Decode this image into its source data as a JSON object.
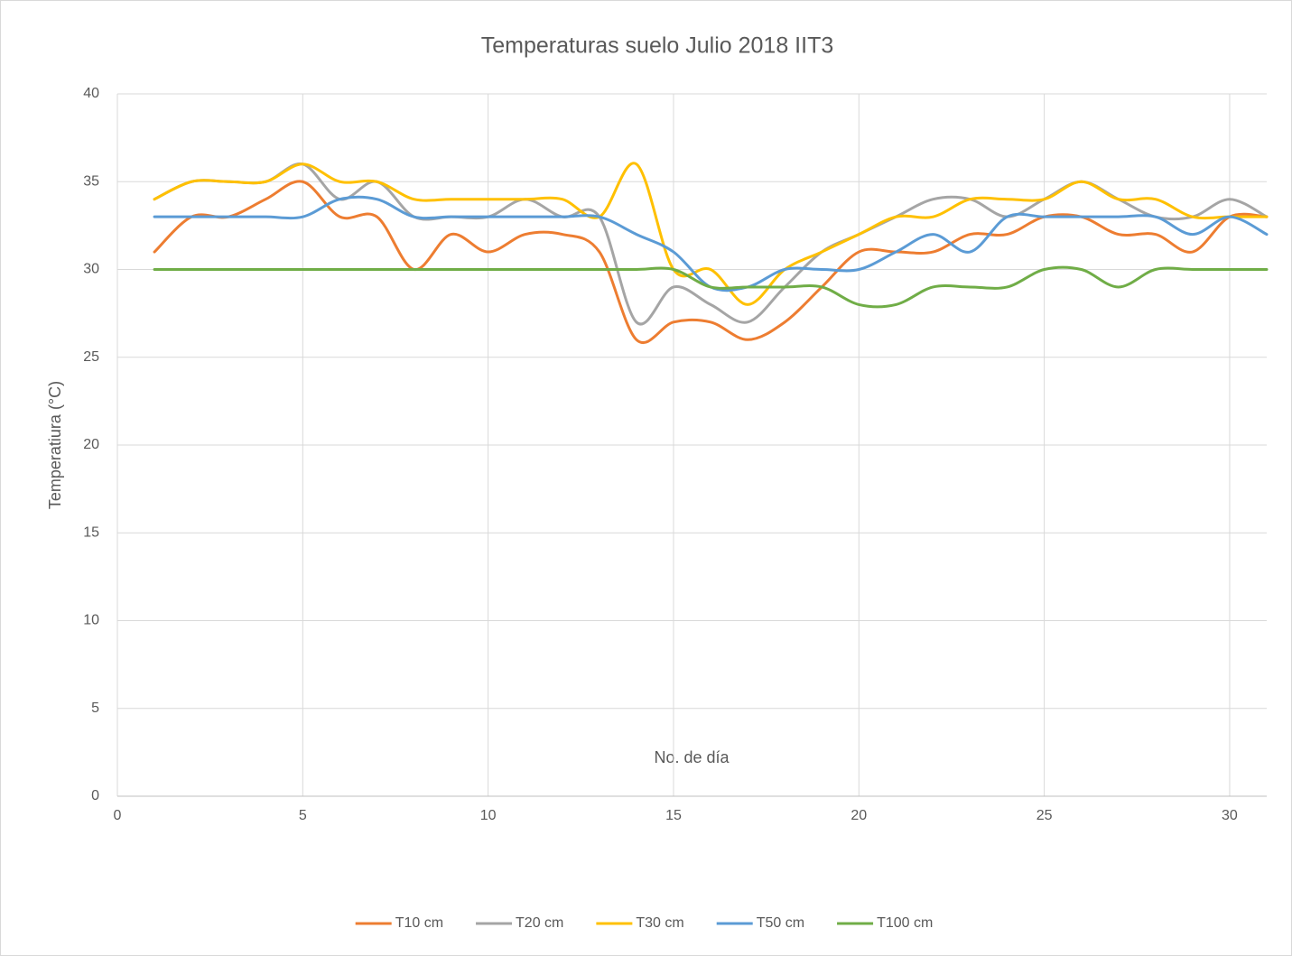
{
  "chart_data": {
    "type": "line",
    "title": "Temperaturas suelo Julio 2018 IIT3",
    "x_label": "No. de día",
    "y_label": "Temperatiura (°C)",
    "x": [
      1,
      2,
      3,
      4,
      5,
      6,
      7,
      8,
      9,
      10,
      11,
      12,
      13,
      14,
      15,
      16,
      17,
      18,
      19,
      20,
      21,
      22,
      23,
      24,
      25,
      26,
      27,
      28,
      29,
      30,
      31
    ],
    "series": [
      {
        "name": "T10 cm",
        "color": "#ed7d31",
        "values": [
          31,
          33,
          33,
          34,
          35,
          33,
          33,
          30,
          32,
          31,
          32,
          32,
          31,
          26,
          27,
          27,
          26,
          27,
          29,
          31,
          31,
          31,
          32,
          32,
          33,
          33,
          32,
          32,
          31,
          33,
          33
        ]
      },
      {
        "name": "T20 cm",
        "color": "#a5a5a5",
        "values": [
          34,
          35,
          35,
          35,
          36,
          34,
          35,
          33,
          33,
          33,
          34,
          33,
          33,
          27,
          29,
          28,
          27,
          29,
          31,
          32,
          33,
          34,
          34,
          33,
          34,
          35,
          34,
          33,
          33,
          34,
          33
        ]
      },
      {
        "name": "T30 cm",
        "color": "#ffc000",
        "values": [
          34,
          35,
          35,
          35,
          36,
          35,
          35,
          34,
          34,
          34,
          34,
          34,
          33,
          36,
          30,
          30,
          28,
          30,
          31,
          32,
          33,
          33,
          34,
          34,
          34,
          35,
          34,
          34,
          33,
          33,
          33
        ]
      },
      {
        "name": "T50 cm",
        "color": "#5b9bd5",
        "values": [
          33,
          33,
          33,
          33,
          33,
          34,
          34,
          33,
          33,
          33,
          33,
          33,
          33,
          32,
          31,
          29,
          29,
          30,
          30,
          30,
          31,
          32,
          31,
          33,
          33,
          33,
          33,
          33,
          32,
          33,
          32
        ]
      },
      {
        "name": "T100 cm",
        "color": "#70ad47",
        "values": [
          30,
          30,
          30,
          30,
          30,
          30,
          30,
          30,
          30,
          30,
          30,
          30,
          30,
          30,
          30,
          29,
          29,
          29,
          29,
          28,
          28,
          29,
          29,
          29,
          30,
          30,
          29,
          30,
          30,
          30,
          30
        ]
      }
    ],
    "xlim": [
      0,
      31
    ],
    "xticks": [
      0,
      5,
      10,
      15,
      20,
      25,
      30
    ],
    "ylim": [
      0,
      40
    ],
    "yticks": [
      0,
      5,
      10,
      15,
      20,
      25,
      30,
      35,
      40
    ],
    "grid": true,
    "smooth": true,
    "legend": "bottom"
  }
}
